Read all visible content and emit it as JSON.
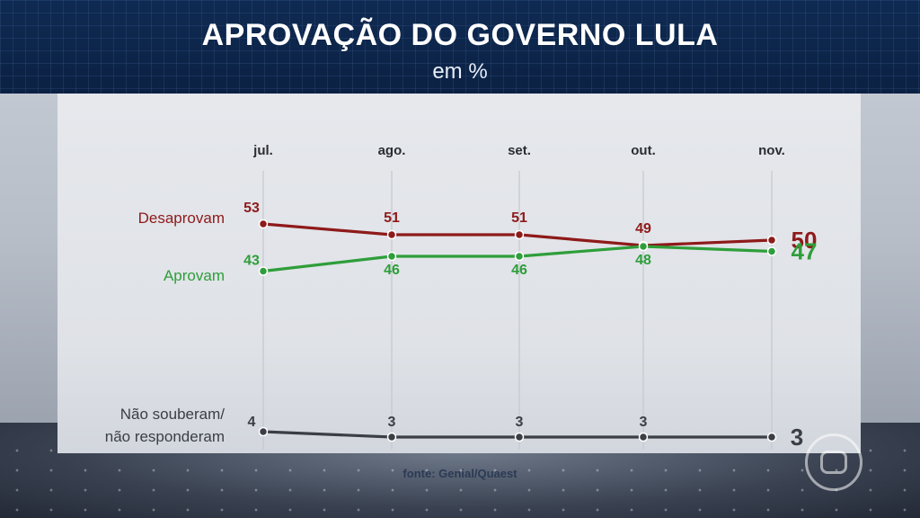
{
  "header": {
    "title": "APROVAÇÃO DO GOVERNO LULA",
    "subtitle": "em %"
  },
  "source": "fonte: Genial/Quaest",
  "colors": {
    "desaprovam": "#8e1a1a",
    "aprovam": "#2e9e3a",
    "nao_souberam": "#3b3e45",
    "axis_label": "#2a2d33",
    "gridline": "#c4c8cf"
  },
  "chart_data": {
    "type": "line",
    "title": "APROVAÇÃO DO GOVERNO LULA",
    "subtitle": "em %",
    "categories": [
      "jul.",
      "ago.",
      "set.",
      "out.",
      "nov."
    ],
    "ylim": [
      0,
      60
    ],
    "grid": true,
    "legend": "left, inline labels",
    "series": [
      {
        "key": "desaprovam",
        "name": "Desaprovam",
        "values": [
          53,
          51,
          51,
          49,
          50
        ]
      },
      {
        "key": "aprovam",
        "name": "Aprovam",
        "values": [
          43,
          46,
          46,
          48,
          47
        ]
      },
      {
        "key": "nao_souberam",
        "name_lines": [
          "Não souberam/",
          "não responderam"
        ],
        "values": [
          4,
          3,
          3,
          3,
          3
        ]
      }
    ]
  }
}
